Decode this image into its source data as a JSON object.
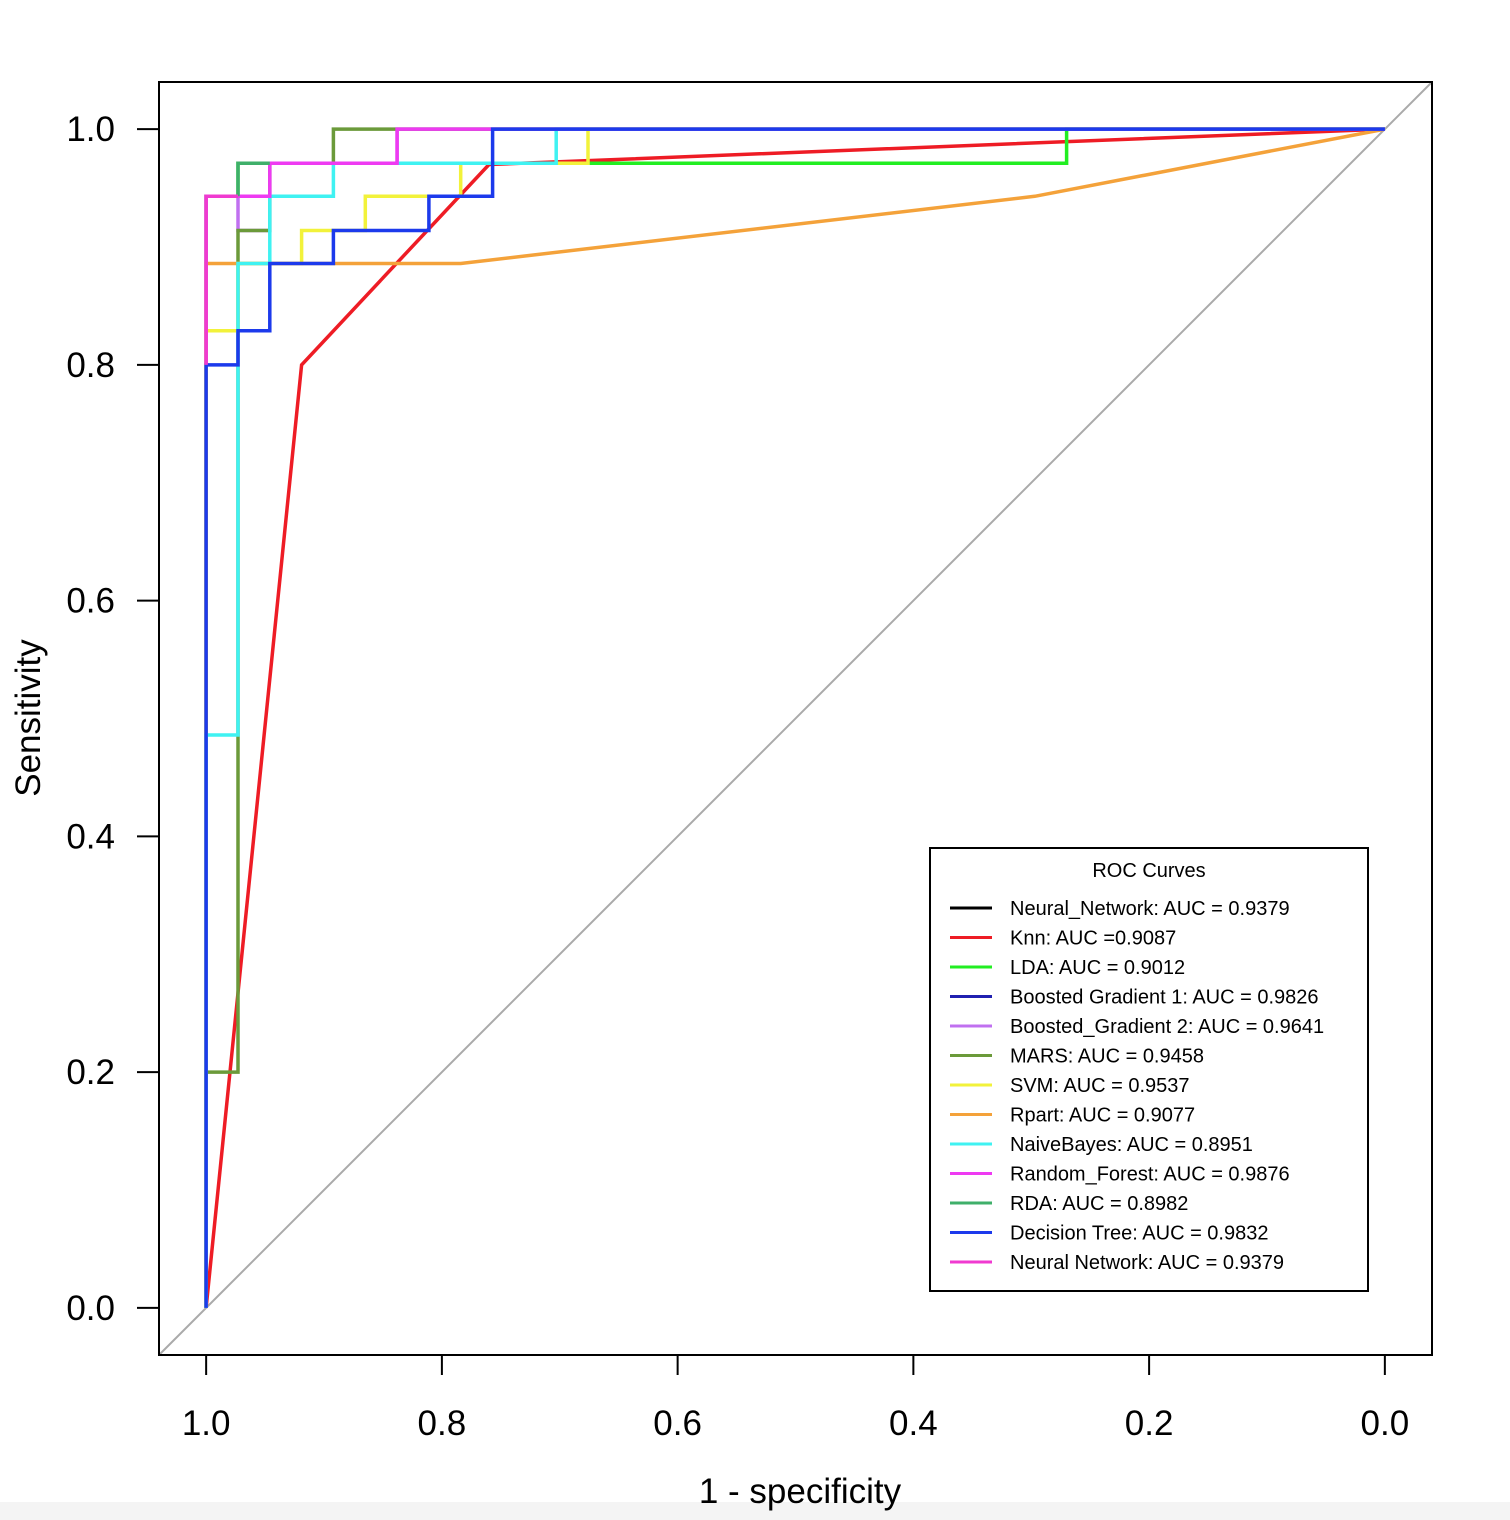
{
  "chart_data": {
    "type": "line",
    "xlabel": "1 - specificity",
    "ylabel": "Sensitivity",
    "xlim": [
      1.04,
      -0.04
    ],
    "ylim": [
      -0.04,
      1.04
    ],
    "x_ticks": [
      "1.0",
      "0.8",
      "0.6",
      "0.4",
      "0.2",
      "0.0"
    ],
    "y_ticks": [
      "0.0",
      "0.2",
      "0.4",
      "0.6",
      "0.8",
      "1.0"
    ],
    "grid": false,
    "legend": {
      "title": "ROC Curves",
      "position": "bottom-right"
    },
    "reference_line": {
      "x": [
        1.04,
        -0.04
      ],
      "y": [
        -0.04,
        1.04
      ],
      "color": "#aaaaaa"
    },
    "series": [
      {
        "name": "Neural_Network: AUC = 0.9379",
        "color": "#000000",
        "x": [],
        "y": []
      },
      {
        "name": "Knn: AUC =0.9087",
        "color": "#ee1c25",
        "x": [
          1.0,
          0.919,
          0.76,
          0.0
        ],
        "y": [
          0.0,
          0.8,
          0.97,
          1.0
        ]
      },
      {
        "name": "LDA: AUC = 0.9012",
        "color": "#22ee22",
        "x": [
          1.0,
          1.0,
          0.973,
          0.973,
          0.27,
          0.27,
          0.0
        ],
        "y": [
          0.0,
          0.943,
          0.943,
          0.971,
          0.971,
          1.0,
          1.0
        ]
      },
      {
        "name": "Boosted Gradient 1: AUC = 0.9826",
        "color": "#2020b0",
        "x": [],
        "y": []
      },
      {
        "name": "Boosted_Gradient 2: AUC = 0.9641",
        "color": "#c070f0",
        "x": [
          1.0,
          1.0,
          0.973,
          0.973,
          0.946,
          0.946,
          0.838,
          0.838,
          0.0
        ],
        "y": [
          0.0,
          0.943,
          0.943,
          0.914,
          0.914,
          0.971,
          0.971,
          1.0,
          1.0
        ]
      },
      {
        "name": "MARS: AUC = 0.9458",
        "color": "#6b9a3a",
        "x": [
          1.0,
          1.0,
          0.973,
          0.973,
          0.973,
          0.946,
          0.946,
          0.892,
          0.892,
          0.0
        ],
        "y": [
          0.0,
          0.2,
          0.2,
          0.914,
          0.914,
          0.914,
          0.971,
          0.971,
          1.0,
          1.0
        ]
      },
      {
        "name": "SVM: AUC = 0.9537",
        "color": "#f2f23a",
        "x": [
          1.0,
          1.0,
          0.973,
          0.973,
          0.919,
          0.919,
          0.865,
          0.865,
          0.784,
          0.784,
          0.676,
          0.676,
          0.0
        ],
        "y": [
          0.0,
          0.829,
          0.829,
          0.886,
          0.886,
          0.914,
          0.914,
          0.943,
          0.943,
          0.971,
          0.971,
          1.0,
          1.0
        ]
      },
      {
        "name": "Rpart: AUC = 0.9077",
        "color": "#f4a23a",
        "x": [
          1.0,
          1.0,
          0.784,
          0.297,
          0.0
        ],
        "y": [
          0.0,
          0.886,
          0.886,
          0.943,
          1.0
        ]
      },
      {
        "name": "NaiveBayes: AUC = 0.8951",
        "color": "#3ff2f2",
        "x": [
          1.0,
          1.0,
          0.973,
          0.973,
          0.946,
          0.946,
          0.892,
          0.892,
          0.703,
          0.703,
          0.0
        ],
        "y": [
          0.0,
          0.486,
          0.486,
          0.886,
          0.886,
          0.943,
          0.943,
          0.971,
          0.971,
          1.0,
          1.0
        ]
      },
      {
        "name": "Random_Forest: AUC = 0.9876",
        "color": "#ee3af2",
        "x": [
          1.0,
          1.0,
          0.946,
          0.946,
          0.838,
          0.838,
          0.0
        ],
        "y": [
          0.8,
          0.943,
          0.943,
          0.971,
          0.971,
          1.0,
          1.0
        ]
      },
      {
        "name": "RDA: AUC = 0.8982",
        "color": "#3faf6a",
        "x": [
          0.973,
          0.973,
          0.946
        ],
        "y": [
          0.943,
          0.971,
          0.971
        ]
      },
      {
        "name": "Decision Tree: AUC = 0.9832",
        "color": "#1c3aec",
        "x": [
          1.0,
          1.0,
          0.973,
          0.973,
          0.946,
          0.946,
          0.892,
          0.892,
          0.811,
          0.811,
          0.784,
          0.784,
          0.757,
          0.757,
          0.0
        ],
        "y": [
          0.0,
          0.8,
          0.8,
          0.829,
          0.829,
          0.886,
          0.886,
          0.914,
          0.914,
          0.943,
          0.943,
          0.943,
          0.943,
          1.0,
          1.0
        ]
      },
      {
        "name": "Neural Network: AUC = 0.9379",
        "color": "#f03ad0",
        "x": [
          1.0,
          1.0,
          0.973
        ],
        "y": [
          0.8,
          0.943,
          0.943
        ]
      }
    ]
  }
}
